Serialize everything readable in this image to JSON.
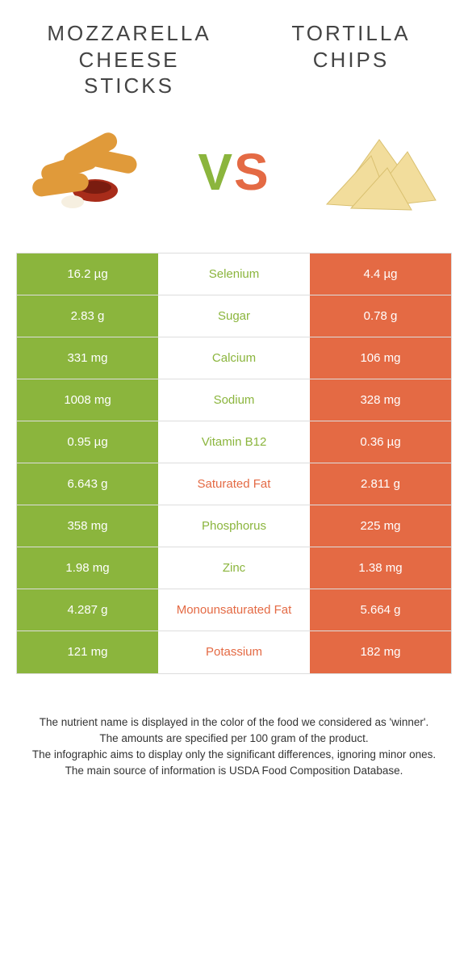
{
  "colors": {
    "left": "#8bb53d",
    "right": "#e46a44"
  },
  "foods": {
    "left": "Mozzarella cheese sticks",
    "right": "Tortilla chips"
  },
  "vs": {
    "v": "V",
    "s": "S"
  },
  "rows": [
    {
      "nutrient": "Selenium",
      "left": "16.2 µg",
      "right": "4.4 µg",
      "winner": "left"
    },
    {
      "nutrient": "Sugar",
      "left": "2.83 g",
      "right": "0.78 g",
      "winner": "left"
    },
    {
      "nutrient": "Calcium",
      "left": "331 mg",
      "right": "106 mg",
      "winner": "left"
    },
    {
      "nutrient": "Sodium",
      "left": "1008 mg",
      "right": "328 mg",
      "winner": "left"
    },
    {
      "nutrient": "Vitamin B12",
      "left": "0.95 µg",
      "right": "0.36 µg",
      "winner": "left"
    },
    {
      "nutrient": "Saturated Fat",
      "left": "6.643 g",
      "right": "2.811 g",
      "winner": "right"
    },
    {
      "nutrient": "Phosphorus",
      "left": "358 mg",
      "right": "225 mg",
      "winner": "left"
    },
    {
      "nutrient": "Zinc",
      "left": "1.98 mg",
      "right": "1.38 mg",
      "winner": "left"
    },
    {
      "nutrient": "Monounsaturated Fat",
      "left": "4.287 g",
      "right": "5.664 g",
      "winner": "right"
    },
    {
      "nutrient": "Potassium",
      "left": "121 mg",
      "right": "182 mg",
      "winner": "right"
    }
  ],
  "footer": {
    "l1": "The nutrient name is displayed in the color of the food we considered as 'winner'.",
    "l2": "The amounts are specified per 100 gram of the product.",
    "l3": "The infographic aims to display only the significant differences, ignoring minor ones.",
    "l4": "The main source of information is USDA Food Composition Database."
  }
}
